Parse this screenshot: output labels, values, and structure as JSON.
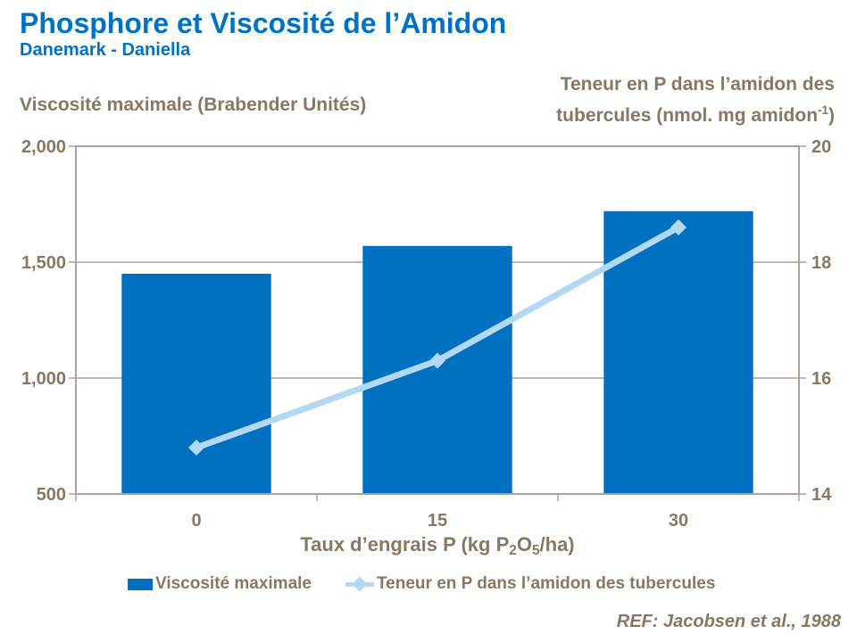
{
  "header": {
    "title": "Phosphore et Viscosité de l’Amidon",
    "subtitle": "Danemark - Daniella"
  },
  "colors": {
    "title": "#0072C6",
    "bar": "#0070C0",
    "line": "#B3D8F3",
    "text": "#8A7763",
    "axis": "#A8A29A"
  },
  "chart_data": {
    "type": "combo-bar-line",
    "categories": [
      "0",
      "15",
      "30"
    ],
    "series": [
      {
        "name": "Viscosité maximale",
        "type": "bar",
        "axis": "left",
        "color": "#0070C0",
        "values": [
          1450,
          1570,
          1720
        ]
      },
      {
        "name": "Teneur en P dans l’amidon des tubercules",
        "type": "line",
        "axis": "right",
        "color": "#B3D8F3",
        "marker": "diamond",
        "values": [
          14.8,
          16.3,
          18.6
        ]
      }
    ],
    "title": "Phosphore et Viscosité de l’Amidon",
    "xlabel": "Taux d’engrais P (kg P2O5/ha)",
    "ylabel_left": "Viscosité maximale (Brabender Unités)",
    "ylabel_right": "Teneur en P dans l’amidon des tubercules (nmol. mg amidon-1)",
    "y_left": {
      "min": 500,
      "max": 2000,
      "tick_values": [
        2000,
        1500,
        1000,
        500
      ],
      "ticks": [
        "2,000",
        "1,500",
        "1,000",
        "500"
      ]
    },
    "y_right": {
      "min": 14,
      "max": 20,
      "tick_values": [
        20,
        18,
        16,
        14
      ],
      "ticks": [
        "20",
        "18",
        "16",
        "14"
      ]
    },
    "gridlines": true,
    "legend_position": "bottom"
  },
  "labels": {
    "right_axis_line1": "Teneur en P dans l’amidon des",
    "right_axis_line2_pre": "tubercules (nmol. mg amidon",
    "right_axis_sup": "-1",
    "right_axis_line2_post": ")",
    "xlabel_pre": "Taux d’engrais P (kg P",
    "xlabel_sub1": "2",
    "xlabel_mid": "O",
    "xlabel_sub2": "5",
    "xlabel_post": "/ha)"
  },
  "legend": {
    "items": [
      {
        "label": "Viscosité maximale",
        "marker": "bar-swatch"
      },
      {
        "label": "Teneur en P dans l’amidon des tubercules",
        "marker": "line-diamond"
      }
    ]
  },
  "footer": {
    "reference": "REF: Jacobsen et al., 1988"
  }
}
